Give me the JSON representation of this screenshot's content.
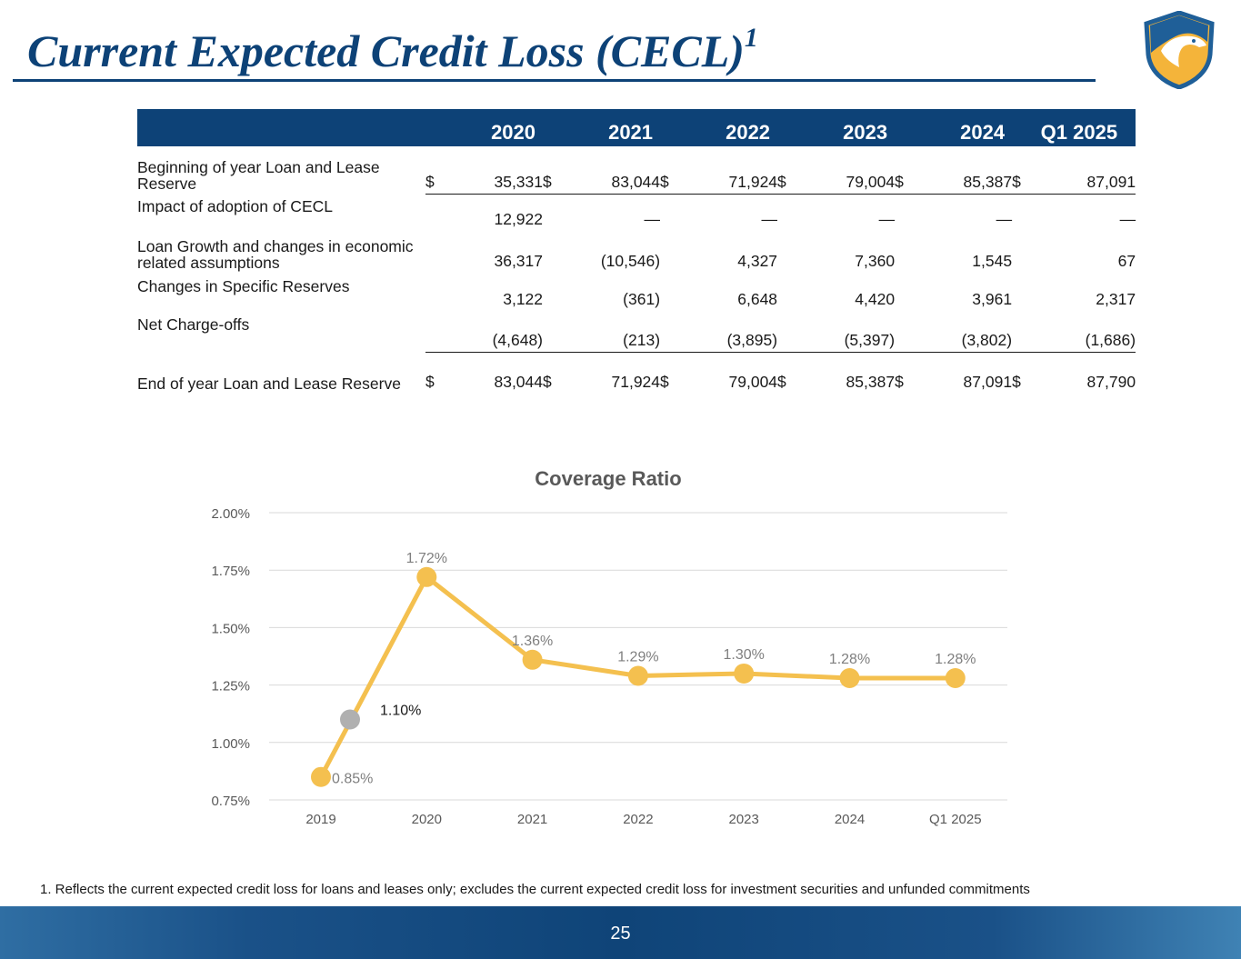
{
  "header": {
    "title": "Current Expected Credit Loss (CECL)",
    "title_sup": "1"
  },
  "table": {
    "columns": [
      "2020",
      "2021",
      "2022",
      "2023",
      "2024",
      "Q1 2025"
    ],
    "rows": [
      {
        "label": "Beginning of year Loan and Lease Reserve",
        "dollar": "$",
        "values": [
          "35,331",
          "83,044",
          "71,924",
          "79,004",
          "85,387",
          "87,091"
        ]
      },
      {
        "label": "Impact of adoption of CECL",
        "dollar": "",
        "values": [
          "12,922",
          "—",
          "—",
          "—",
          "—",
          "—"
        ]
      },
      {
        "label": "Loan Growth and changes in economic related assumptions",
        "dollar": "",
        "values": [
          "36,317",
          "(10,546)",
          "4,327",
          "7,360",
          "1,545",
          "67"
        ]
      },
      {
        "label": "Changes in Specific Reserves",
        "dollar": "",
        "values": [
          "3,122",
          "(361)",
          "6,648",
          "4,420",
          "3,961",
          "2,317"
        ]
      },
      {
        "label": "Net Charge-offs",
        "dollar": "",
        "values": [
          "(4,648)",
          "(213)",
          "(3,895)",
          "(5,397)",
          "(3,802)",
          "(1,686)"
        ]
      },
      {
        "label": "End of year Loan and Lease Reserve",
        "dollar": "$",
        "values": [
          "83,044",
          "71,924",
          "79,004",
          "85,387",
          "87,091",
          "87,790"
        ]
      }
    ]
  },
  "chart_data": {
    "type": "line",
    "title": "Coverage Ratio",
    "categories": [
      "2019",
      "2020",
      "2021",
      "2022",
      "2023",
      "2024",
      "Q1 2025"
    ],
    "ylim": [
      0.75,
      2.0
    ],
    "yticks": [
      "0.75%",
      "1.00%",
      "1.25%",
      "1.50%",
      "1.75%",
      "2.00%"
    ],
    "grid": true,
    "series": [
      {
        "x": [
          "2019",
          "2020",
          "2021",
          "2022",
          "2023",
          "2024",
          "Q1 2025"
        ],
        "values": [
          0.85,
          1.72,
          1.36,
          1.29,
          1.3,
          1.28,
          1.28
        ],
        "labels": [
          "0.85%",
          "1.72%",
          "1.36%",
          "1.29%",
          "1.30%",
          "1.28%",
          "1.28%"
        ],
        "color": "#f4c04f"
      }
    ],
    "annotation": {
      "x": "2019",
      "value": 1.1,
      "label": "1.10%",
      "color": "#b0b0b0"
    }
  },
  "footnote": "1. Reflects the current expected credit loss for loans and leases only; excludes the current expected credit loss for investment securities and unfunded commitments",
  "page_number": "25",
  "colors": {
    "brand": "#0d4277",
    "series": "#f4c04f",
    "marker_alt": "#b0b0b0"
  }
}
